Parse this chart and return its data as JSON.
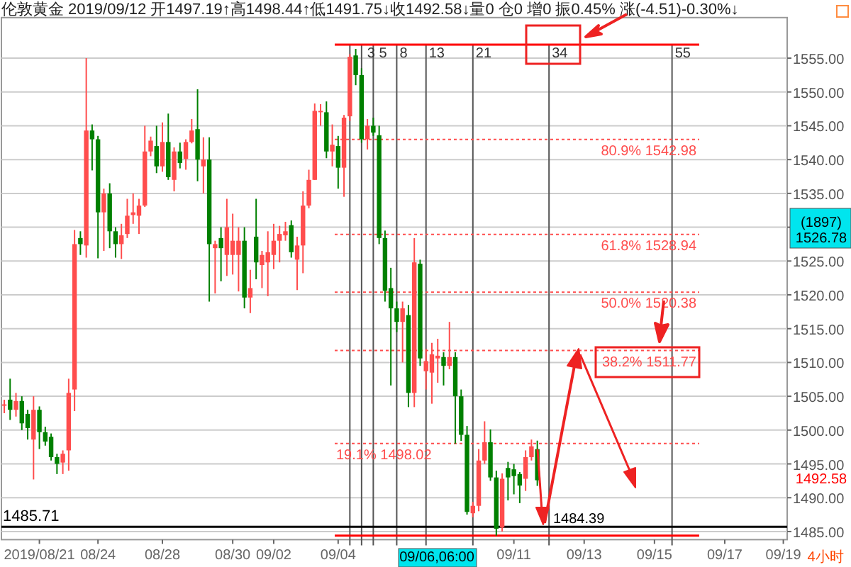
{
  "chart_data": {
    "type": "candlestick",
    "title": "伦敦黄金 2019/09/12 开1497.19↑高1498.44↑低1491.75↓收1492.58↓量0 仓0 增0 振0.45% 涨(-4.51)-0.30%↓",
    "categories": [
      null,
      null,
      null,
      null,
      null,
      null,
      "2019/08/21",
      null,
      null,
      null,
      null,
      null,
      null,
      null,
      null,
      null,
      "08/24",
      null,
      null,
      null,
      null,
      null,
      null,
      null,
      null,
      null,
      null,
      "08/28",
      null,
      null,
      null,
      null,
      null,
      null,
      null,
      null,
      null,
      null,
      null,
      "08/30",
      null,
      null,
      null,
      null,
      null,
      null,
      "09/02",
      null,
      null,
      null,
      null,
      null,
      null,
      null,
      null,
      null,
      null,
      "09/04",
      null,
      null,
      null,
      null,
      null,
      null,
      null,
      null,
      null,
      null,
      null,
      null,
      null,
      null,
      null,
      null,
      null,
      null,
      null,
      null,
      null,
      null,
      null,
      null,
      null,
      null,
      null,
      null,
      null,
      "09/11",
      null,
      null,
      null,
      null,
      null,
      null,
      null,
      null,
      null,
      null,
      null,
      "09/13",
      null,
      null,
      null,
      null,
      null,
      null,
      null,
      null,
      null,
      null,
      null,
      "09/15",
      null,
      null,
      null,
      null,
      null,
      null,
      null,
      null,
      null,
      null,
      null,
      "09/17",
      null,
      null,
      null,
      null,
      null,
      null,
      null,
      null,
      null,
      "09/19"
    ],
    "ohlc": [
      [
        1503.6,
        1504.5,
        1502.5,
        1503.8
      ],
      [
        1504.5,
        1507.6,
        1501.5,
        1503
      ],
      [
        1503,
        1505.5,
        1502,
        1504.3
      ],
      [
        1504.3,
        1505,
        1500,
        1501
      ],
      [
        1502.4,
        1503,
        1498.6,
        1500.3
      ],
      [
        1498.6,
        1505,
        1492.7,
        1503
      ],
      [
        1503,
        1503.5,
        1497.2,
        1499.7
      ],
      [
        1499.7,
        1500.5,
        1497.7,
        1498.3
      ],
      [
        1499,
        1499.5,
        1495.5,
        1496
      ],
      [
        1496,
        1496.5,
        1493.5,
        1495
      ],
      [
        1495.2,
        1497,
        1493.5,
        1496.5
      ],
      [
        1497,
        1507.6,
        1494,
        1505.5
      ],
      [
        1506,
        1529.6,
        1502.8,
        1527.5
      ],
      [
        1528.4,
        1529.4,
        1525.9,
        1527.5
      ],
      [
        1527.3,
        1555,
        1525.5,
        1544.3
      ],
      [
        1544.3,
        1545.2,
        1538.4,
        1543
      ],
      [
        1543,
        1543.5,
        1525.4,
        1532.2
      ],
      [
        1532.2,
        1535.7,
        1526.5,
        1535
      ],
      [
        1535,
        1536.5,
        1526.9,
        1529.4
      ],
      [
        1529.4,
        1530,
        1525.5,
        1527.5
      ],
      [
        1527.5,
        1530.5,
        1525.3,
        1528.8
      ],
      [
        1529,
        1534.2,
        1528.4,
        1531.7
      ],
      [
        1531.8,
        1535,
        1530.5,
        1532.2
      ],
      [
        1531.7,
        1534.2,
        1529,
        1533.2
      ],
      [
        1533.2,
        1545,
        1533,
        1541.2
      ],
      [
        1541.2,
        1543.4,
        1540.5,
        1542.8
      ],
      [
        1542,
        1545,
        1538,
        1539
      ],
      [
        1539,
        1545.5,
        1538.2,
        1542.6
      ],
      [
        1542.6,
        1546.8,
        1537,
        1537.4
      ],
      [
        1537,
        1541.8,
        1535.3,
        1541.2
      ],
      [
        1541.2,
        1542.5,
        1538.7,
        1539.5
      ],
      [
        1540.1,
        1543,
        1538.5,
        1542.6
      ],
      [
        1542.6,
        1546,
        1542.4,
        1544.3
      ],
      [
        1544.5,
        1550.4,
        1536.8,
        1540
      ],
      [
        1539,
        1543.3,
        1535,
        1540
      ],
      [
        1540,
        1543.3,
        1519,
        1527.5
      ],
      [
        1526.9,
        1528,
        1520.2,
        1527.5
      ],
      [
        1528.4,
        1530,
        1522,
        1526.9
      ],
      [
        1525.9,
        1534.2,
        1522.8,
        1530
      ],
      [
        1525.9,
        1532,
        1523,
        1528
      ],
      [
        1525.9,
        1530,
        1520.5,
        1528
      ],
      [
        1528,
        1530,
        1518,
        1519.6
      ],
      [
        1519.6,
        1523.7,
        1517.3,
        1521
      ],
      [
        1528.6,
        1534.2,
        1522.3,
        1524.8
      ],
      [
        1524.4,
        1526.5,
        1521,
        1525.9
      ],
      [
        1524.8,
        1529.4,
        1519.8,
        1526.3
      ],
      [
        1525.9,
        1530.5,
        1523.8,
        1528
      ],
      [
        1528,
        1530.2,
        1524.8,
        1529
      ],
      [
        1528.8,
        1530.8,
        1528,
        1529.4
      ],
      [
        1530.3,
        1531,
        1525.5,
        1526.3
      ],
      [
        1525.2,
        1528.6,
        1520.7,
        1527.3
      ],
      [
        1527.3,
        1535.3,
        1523.2,
        1533.2
      ],
      [
        1533.2,
        1538.5,
        1532.8,
        1537
      ],
      [
        1537,
        1548.3,
        1537,
        1547.2
      ],
      [
        1547,
        1548.2,
        1545,
        1547.2
      ],
      [
        1547,
        1548.6,
        1540.2,
        1541.2
      ],
      [
        1541.2,
        1545.2,
        1539,
        1542.2
      ],
      [
        1542,
        1543.5,
        1535.7,
        1538.8
      ],
      [
        1538.8,
        1546.6,
        1534.5,
        1546.2
      ],
      [
        1546.4,
        1555.6,
        1545.7,
        1555.2
      ],
      [
        1555.4,
        1556.37,
        1551,
        1552.5
      ],
      [
        1552.5,
        1553.5,
        1542.5,
        1543
      ],
      [
        1543,
        1546,
        1541.5,
        1545
      ],
      [
        1545,
        1546.2,
        1543.5,
        1544
      ],
      [
        1543.6,
        1545,
        1527.5,
        1528.4
      ],
      [
        1528.4,
        1529.5,
        1519,
        1520.6
      ],
      [
        1521,
        1524,
        1506.6,
        1518
      ],
      [
        1518,
        1519,
        1514.5,
        1516
      ],
      [
        1516,
        1519,
        1510,
        1518
      ],
      [
        1517,
        1518.5,
        1503.4,
        1505.5
      ],
      [
        1505.5,
        1528.4,
        1503.4,
        1524.8
      ],
      [
        1524.6,
        1525.2,
        1509.5,
        1510.6
      ],
      [
        1508.7,
        1512,
        1506,
        1510.2
      ],
      [
        1508.5,
        1512.9,
        1503.9,
        1511.2
      ],
      [
        1510.6,
        1513.5,
        1507,
        1511
      ],
      [
        1510.8,
        1511.5,
        1506.6,
        1509.5
      ],
      [
        1509.5,
        1516,
        1509,
        1510.8
      ],
      [
        1510.8,
        1511.5,
        1498,
        1505
      ],
      [
        1505,
        1506,
        1498.4,
        1499.3
      ],
      [
        1499.3,
        1500.6,
        1487.5,
        1487.9
      ],
      [
        1487.7,
        1489.4,
        1487.1,
        1488.8
      ],
      [
        1488.8,
        1497.2,
        1488,
        1495.5
      ],
      [
        1495.5,
        1501.3,
        1495,
        1498.2
      ],
      [
        1498.2,
        1500.1,
        1492.5,
        1493
      ],
      [
        1493,
        1494,
        1484.39,
        1485.4
      ],
      [
        1485.6,
        1493.6,
        1485,
        1492.8
      ],
      [
        1494.4,
        1495.3,
        1489.6,
        1493
      ],
      [
        1494.2,
        1495,
        1490.5,
        1493.2
      ],
      [
        1493.5,
        1493.8,
        1489.2,
        1491.8
      ],
      [
        1492.8,
        1497,
        1491,
        1496
      ],
      [
        1496,
        1498.6,
        1495.5,
        1497.6
      ],
      [
        1497.19,
        1498.44,
        1491.75,
        1492.58
      ],
      null,
      null,
      null,
      null,
      null,
      null,
      null,
      null,
      null,
      null,
      null,
      null,
      null,
      null,
      null,
      null,
      null,
      null,
      null,
      null,
      null,
      null,
      null,
      null,
      null,
      null,
      null,
      null,
      null,
      null,
      null,
      null,
      null,
      null,
      null,
      null,
      null,
      null,
      null,
      null,
      null,
      null
    ],
    "ylim": [
      1483.8,
      1561
    ],
    "yticks": [
      {
        "value": 1485,
        "label": "1485.00"
      },
      {
        "value": 1490,
        "label": "1490.00"
      },
      {
        "value": 1495,
        "label": "1495.00"
      },
      {
        "value": 1500,
        "label": "1500.00"
      },
      {
        "value": 1505,
        "label": "1505.00"
      },
      {
        "value": 1510,
        "label": "1510.00"
      },
      {
        "value": 1515,
        "label": "1515.00"
      },
      {
        "value": 1520,
        "label": "1520.00"
      },
      {
        "value": 1525,
        "label": "1525.00"
      },
      {
        "value": 1530,
        "label": null
      },
      {
        "value": 1535,
        "label": "1535.00"
      },
      {
        "value": 1540,
        "label": "1540.00"
      },
      {
        "value": 1545,
        "label": "1545.00"
      },
      {
        "value": 1550,
        "label": "1550.00"
      },
      {
        "value": 1555,
        "label": "1555.00"
      }
    ],
    "grid": "y",
    "ref_lines": [
      {
        "axis": "y",
        "value": 1542.98,
        "label": "80.9% 1542.98",
        "color": "#ff4d4d",
        "line_style": "dotted"
      },
      {
        "axis": "y",
        "value": 1528.94,
        "label": "61.8% 1528.94",
        "color": "#ff4d4d",
        "line_style": "dotted"
      },
      {
        "axis": "y",
        "value": 1520.38,
        "label": "50.0% 1520.38",
        "color": "#ff4d4d",
        "line_style": "dotted"
      },
      {
        "axis": "y",
        "value": 1511.77,
        "label": "38.2% 1511.77",
        "color": "#ff4d4d",
        "line_style": "dotted"
      },
      {
        "axis": "y",
        "value": 1498.02,
        "label": "19.1% 1498.02",
        "color": "#ff4d4d",
        "line_style": "dotted"
      },
      {
        "axis": "y",
        "value": 1557,
        "label": null,
        "color": "#ff0000",
        "line_style": "solid"
      },
      {
        "axis": "y",
        "value": 1484.39,
        "label": null,
        "color": "#ff0000",
        "line_style": "solid"
      },
      {
        "axis": "y",
        "value": 1485.71,
        "label": "1485.71",
        "color": "#000000",
        "line_style": "solid"
      }
    ],
    "annotations": [
      {
        "text": "1484.39",
        "y": 1484.39
      },
      "(1897)",
      "1526.78",
      "1492.58",
      "09/06,06:00",
      "4小时",
      "3",
      "5",
      "8",
      "13",
      "21",
      "34",
      "55"
    ]
  }
}
